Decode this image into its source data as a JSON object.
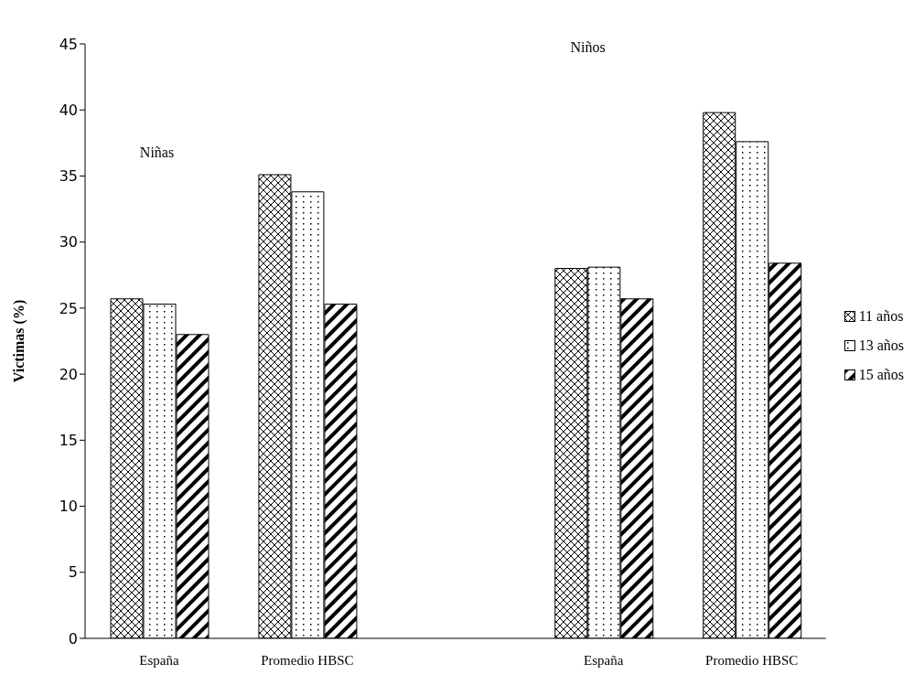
{
  "chart_data": {
    "type": "bar",
    "ylabel": "Victimas (%)",
    "categories": [
      "España",
      "Promedio HBSC",
      null,
      "España",
      "Promedio HBSC"
    ],
    "series": [
      {
        "name": "11 años",
        "color": "#000000",
        "values": [
          25.7,
          35.1,
          null,
          28.0,
          39.8
        ]
      },
      {
        "name": "13 años",
        "color": "#000000",
        "values": [
          25.3,
          33.8,
          null,
          28.1,
          37.6
        ]
      },
      {
        "name": "15 años",
        "color": "#000000",
        "values": [
          23.0,
          25.3,
          null,
          25.7,
          28.4
        ]
      }
    ],
    "ylim": [
      0,
      45
    ],
    "yticks": [
      0,
      5,
      10,
      15,
      20,
      25,
      30,
      35,
      40,
      45
    ],
    "legend": "right",
    "annotations": [
      "Niñas",
      "Niños"
    ]
  }
}
